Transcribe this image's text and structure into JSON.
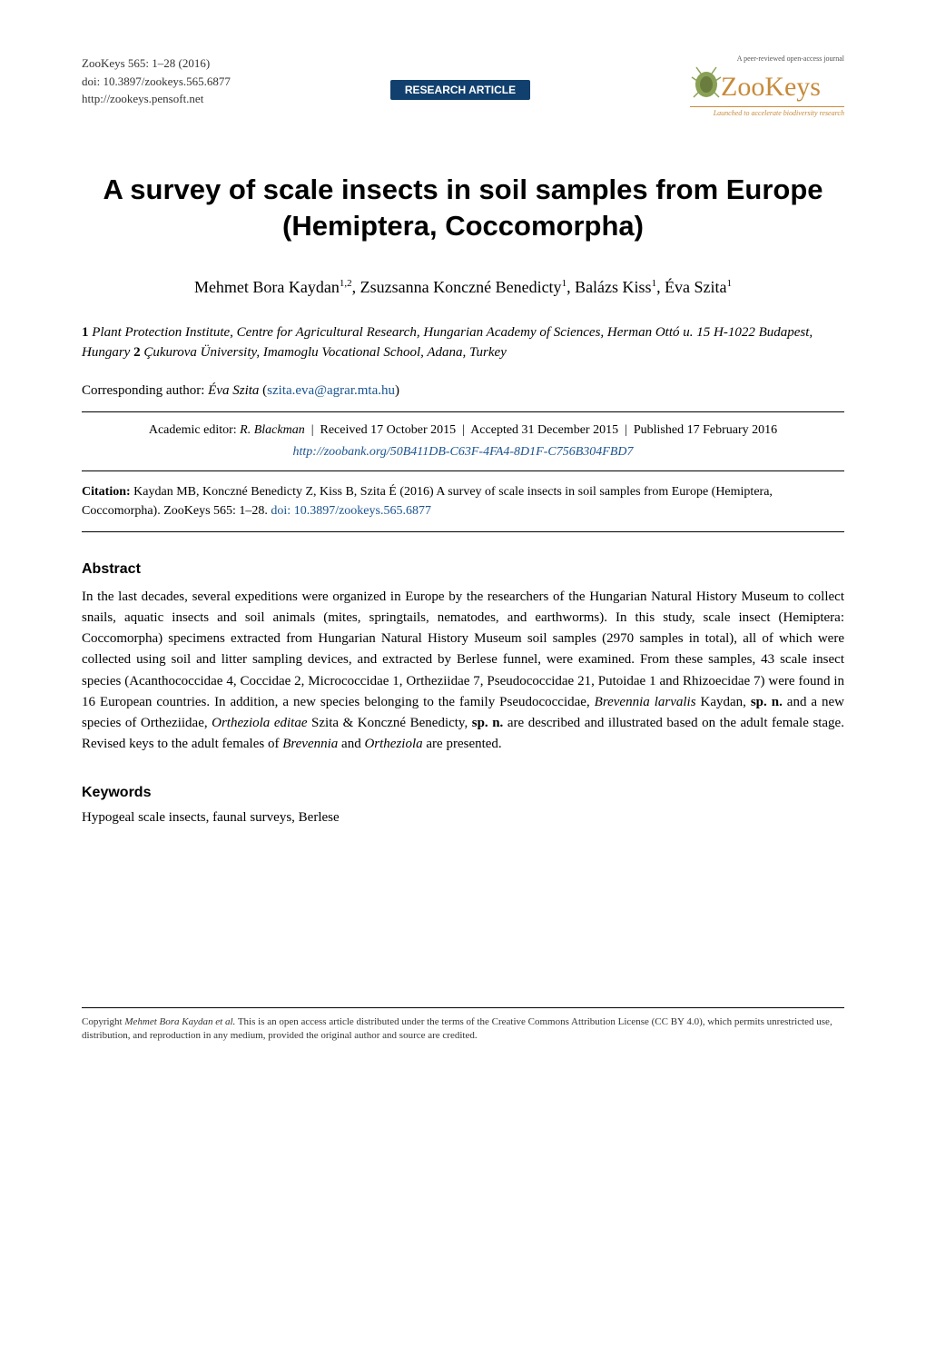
{
  "header": {
    "journal_citation": "ZooKeys 565: 1–28 (2016)",
    "doi": "doi: 10.3897/zookeys.565.6877",
    "url": "http://zookeys.pensoft.net",
    "badge": "RESEARCH ARTICLE",
    "logo_tagline_top": "A peer-reviewed open-access journal",
    "logo_text": "ZooKeys",
    "logo_tagline_bottom": "Launched to accelerate biodiversity research"
  },
  "title": "A survey of scale insects in soil samples from Europe (Hemiptera, Coccomorpha)",
  "authors_html": "Mehmet Bora Kaydan<sup>1,2</sup>, Zsuzsanna Konczné Benedicty<sup>1</sup>, Balázs Kiss<sup>1</sup>, Éva Szita<sup>1</sup>",
  "affiliations_html": "<b>1</b> <i>Plant Protection Institute, Centre for Agricultural Research, Hungarian Academy of Sciences, Herman Ottó u. 15 H-1022 Budapest, Hungary</i> <b>2</b> <i>Çukurova Üniversity, Imamoglu Vocational School, Adana, Turkey</i>",
  "corresponding": {
    "label": "Corresponding author: ",
    "name": "Éva Szita",
    "email": "szita.eva@agrar.mta.hu"
  },
  "editor_dates_html": "Academic editor: <span class=\"ed-name\">R. Blackman</span> &nbsp;|&nbsp; Received 17 October 2015 &nbsp;|&nbsp; Accepted 31 December 2015 &nbsp;|&nbsp; Published 17 February 2016",
  "zoobank": "http://zoobank.org/50B411DB-C63F-4FA4-8D1F-C756B304FBD7",
  "citation_html": "<b>Citation:</b> Kaydan MB, Konczné Benedicty Z, Kiss B, Szita É (2016) A survey of scale insects in soil samples from Europe (Hemiptera, Coccomorpha). ZooKeys 565: 1–28. <span class=\"doi-link\">doi: 10.3897/zookeys.565.6877</span>",
  "abstract": {
    "heading": "Abstract",
    "body_html": "In the last decades, several expeditions were organized in Europe by the researchers of the Hungarian Natural History Museum to collect snails, aquatic insects and soil animals (mites, springtails, nematodes, and earthworms). In this study, scale insect (Hemiptera: Coccomorpha) specimens extracted from Hungarian Natural History Museum soil samples (2970 samples in total), all of which were collected using soil and litter sampling devices, and extracted by Berlese funnel, were examined. From these samples, 43 scale insect species (Acanthococcidae 4, Coccidae 2, Micrococcidae 1, Ortheziidae 7, Pseudococcidae 21, Putoidae 1 and Rhizoecidae 7) were found in 16 European countries. In addition, a new species belonging to the family Pseudococcidae, <i>Brevennia larvalis</i> Kaydan, <b>sp. n.</b> and a new species of Ortheziidae, <i>Ortheziola editae</i> Szita &amp; Konczné Benedicty, <b>sp. n.</b> are described and illustrated based on the adult female stage. Revised keys to the adult females of <i>Brevennia</i> and <i>Ortheziola</i> are presented."
  },
  "keywords": {
    "heading": "Keywords",
    "body": "Hypogeal scale insects, faunal surveys, Berlese"
  },
  "footer_html": "Copyright <i>Mehmet Bora Kaydan et al.</i> This is an open access article distributed under the terms of the Creative Commons Attribution License (CC BY 4.0), which permits unrestricted use, distribution, and reproduction in any medium, provided the original author and source are credited.",
  "colors": {
    "badge_bg": "#11406e",
    "link": "#1a5490",
    "logo_brown": "#c78a3a",
    "bug_green": "#8aa055"
  }
}
